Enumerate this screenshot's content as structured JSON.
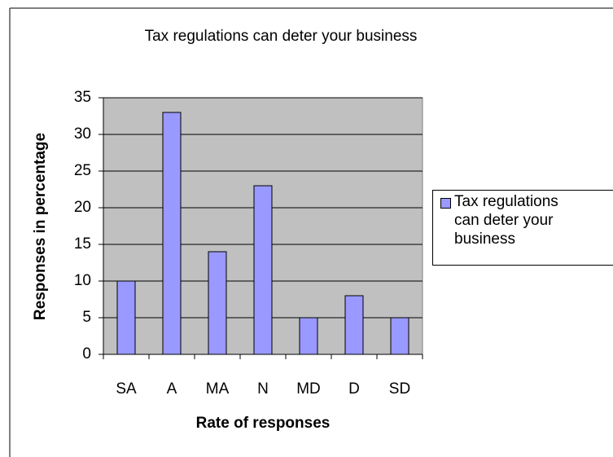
{
  "chart_data": {
    "type": "bar",
    "title": "Tax regulations can deter your business",
    "x_label": "Rate of responses",
    "y_label": "Responses in percentage",
    "categories": [
      "SA",
      "A",
      "MA",
      "N",
      "MD",
      "D",
      "SD"
    ],
    "series": [
      {
        "name": "Tax regulations can deter your business",
        "color": "#9999ff",
        "values": [
          10,
          33,
          14,
          23,
          5,
          8,
          5
        ]
      }
    ],
    "ylim": [
      0,
      35
    ],
    "yticks": [
      0,
      5,
      10,
      15,
      20,
      25,
      30,
      35
    ],
    "grid": true,
    "legend": "right"
  }
}
